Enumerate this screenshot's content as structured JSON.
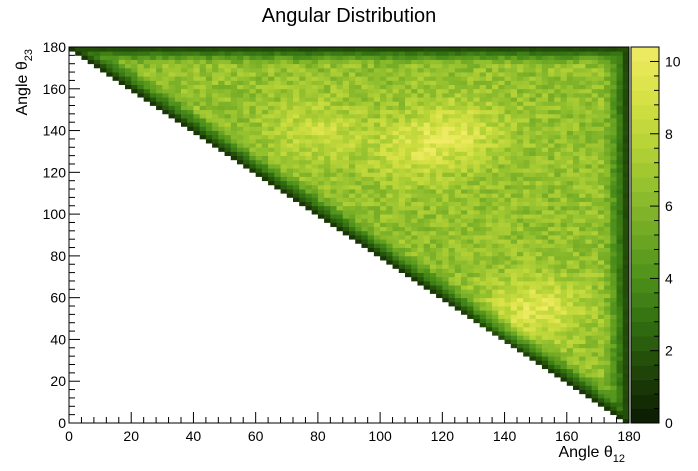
{
  "chart_data": {
    "type": "heatmap",
    "title": "Angular Distribution",
    "xlabel": {
      "main": "Angle θ",
      "sub": "12"
    },
    "ylabel": {
      "main": "Angle θ",
      "sub": "23"
    },
    "xlim": [
      0,
      180
    ],
    "ylim": [
      0,
      180
    ],
    "x_ticks": [
      0,
      20,
      40,
      60,
      80,
      100,
      120,
      140,
      160,
      180
    ],
    "y_ticks": [
      0,
      20,
      40,
      60,
      80,
      100,
      120,
      140,
      160,
      180
    ],
    "zlim": [
      0,
      10.4
    ],
    "z_ticks": [
      0,
      2,
      4,
      6,
      8,
      10
    ],
    "bins": {
      "nx": 180,
      "ny": 180
    },
    "region": "filled where θ23 > 180 - θ12 (upper-right triangle)",
    "intensity": {
      "interior_typical": 6.5,
      "hotspot_values": [
        {
          "x": 150,
          "y": 55,
          "z": 9.5
        },
        {
          "x": 125,
          "y": 140,
          "z": 9
        },
        {
          "x": 110,
          "y": 130,
          "z": 8.5
        },
        {
          "x": 80,
          "y": 140,
          "z": 8.5
        }
      ],
      "edge_value": 1
    },
    "palette": [
      "#0a1a02",
      "#1e4007",
      "#2f6a10",
      "#4a8e1a",
      "#6fa824",
      "#93c02e",
      "#b8d437",
      "#d8e246",
      "#f0ec66"
    ],
    "grid": false,
    "legend": "color bar right"
  }
}
